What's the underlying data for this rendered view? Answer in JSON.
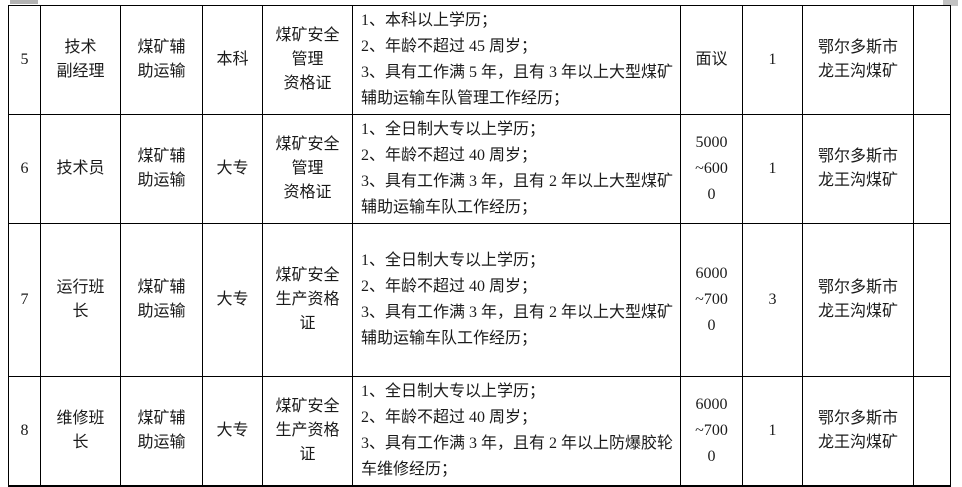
{
  "page": {
    "background_color": "#ffffff",
    "text_color": "#1a1a1a",
    "border_color": "#000000"
  },
  "table": {
    "rows": [
      {
        "num": "5",
        "position": "技术\n副经理",
        "department": "煤矿辅\n助运输",
        "education": "本科",
        "certificate": "煤矿安全\n管理\n资格证",
        "requirements": [
          "1、本科以上学历；",
          "2、年龄不超过 45 周岁；",
          "3、具有工作满 5 年，且有 3 年以上大型煤矿辅助运输车队管理工作经历；"
        ],
        "salary": "面议",
        "headcount": "1",
        "location": "鄂尔多斯市龙王沟煤矿",
        "notes": ""
      },
      {
        "num": "6",
        "position": "技术员",
        "department": "煤矿辅\n助运输",
        "education": "大专",
        "certificate": "煤矿安全\n管理\n资格证",
        "requirements": [
          "1、全日制大专以上学历；",
          "2、年龄不超过 40 周岁；",
          "3、具有工作满 3 年，且有 2 年以上大型煤矿辅助运输车队工作经历；"
        ],
        "salary": "5000~6000",
        "headcount": "1",
        "location": "鄂尔多斯市龙王沟煤矿",
        "notes": ""
      },
      {
        "num": "7",
        "position": "运行班\n长",
        "department": "煤矿辅\n助运输",
        "education": "大专",
        "certificate": "煤矿安全\n生产资格\n证",
        "requirements": [
          "1、全日制大专以上学历；",
          "2、年龄不超过 40 周岁；",
          "3、具有工作满 3 年，且有 2 年以上大型煤矿辅助运输车队工作经历；"
        ],
        "salary": "6000~7000",
        "headcount": "3",
        "location": "鄂尔多斯市龙王沟煤矿",
        "notes": ""
      },
      {
        "num": "8",
        "position": "维修班\n长",
        "department": "煤矿辅\n助运输",
        "education": "大专",
        "certificate": "煤矿安全\n生产资格\n证",
        "requirements": [
          "1、全日制大专以上学历；",
          "2、年龄不超过 40 周岁；",
          "3、具有工作满 3 年，且有 2 年以上防爆胶轮车维修经历；"
        ],
        "salary": "6000~7000",
        "headcount": "1",
        "location": "鄂尔多斯市龙王沟煤矿",
        "notes": ""
      }
    ]
  }
}
